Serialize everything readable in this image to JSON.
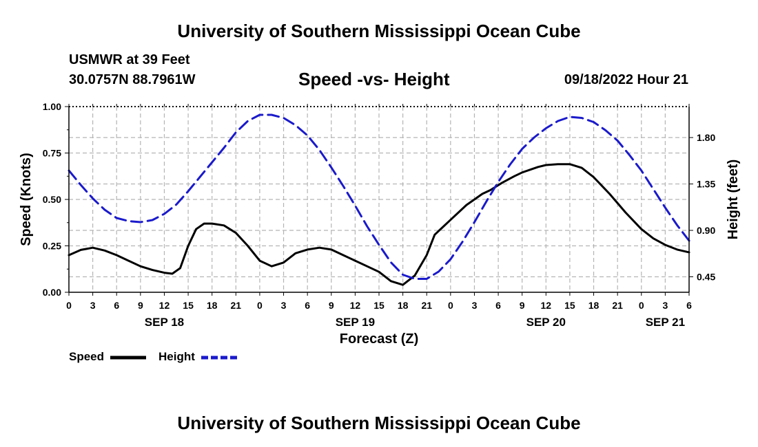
{
  "header": {
    "title": "University of Southern Mississippi Ocean Cube",
    "station": "USMWR at 39 Feet",
    "coords": "30.0757N  88.7961W",
    "subtitle": "Speed -vs- Height",
    "datetime": "09/18/2022 Hour 21",
    "footer_title": "University of Southern Mississippi Ocean Cube"
  },
  "legend": {
    "speed_label": "Speed",
    "height_label": "Height"
  },
  "colors": {
    "speed": "#000000",
    "height": "#1a1acc",
    "grid": "#b4b4b4"
  },
  "chart_data": {
    "type": "line",
    "title": "Speed -vs- Height",
    "xlabel": "Forecast (Z)",
    "ylabel": "Speed (Knots)",
    "y2label": "Height (feet)",
    "x_unit": "hours since 09/18 00Z",
    "xlim": [
      0,
      78
    ],
    "ylim": [
      0,
      1.0
    ],
    "y2lim": [
      0.3,
      2.1
    ],
    "x_tick_labels": [
      "0",
      "3",
      "6",
      "9",
      "12",
      "15",
      "18",
      "21",
      "0",
      "3",
      "6",
      "9",
      "12",
      "15",
      "18",
      "21",
      "0",
      "3",
      "6",
      "9",
      "12",
      "15",
      "18",
      "21",
      "0",
      "3",
      "6"
    ],
    "day_labels": [
      {
        "label": "SEP 18",
        "x": 12
      },
      {
        "label": "SEP 19",
        "x": 36
      },
      {
        "label": "SEP 20",
        "x": 60
      },
      {
        "label": "SEP 21",
        "x": 75
      }
    ],
    "y_ticks": [
      "0.00",
      "0.25",
      "0.50",
      "0.75",
      "1.00"
    ],
    "y2_ticks": [
      "0.45",
      "0.90",
      "1.35",
      "1.80"
    ],
    "series": [
      {
        "name": "Speed",
        "axis": "left",
        "style": "solid",
        "x": [
          0,
          1.5,
          3,
          4.5,
          6,
          7.5,
          9,
          10.5,
          12,
          13,
          14,
          15,
          16,
          17,
          18,
          19.5,
          21,
          22.5,
          24,
          25.5,
          27,
          28.5,
          30,
          31.5,
          33,
          34.5,
          36,
          37.5,
          39,
          40.5,
          42,
          43.5,
          45,
          46,
          47,
          48,
          49,
          50,
          51,
          52,
          53,
          54.5,
          56,
          57,
          58,
          59,
          60,
          61.5,
          63,
          64.5,
          66,
          67,
          68,
          69,
          70,
          72,
          73.5,
          75,
          76.5,
          78
        ],
        "values": [
          0.2,
          0.228,
          0.24,
          0.225,
          0.2,
          0.17,
          0.14,
          0.12,
          0.105,
          0.1,
          0.13,
          0.25,
          0.34,
          0.37,
          0.37,
          0.36,
          0.32,
          0.25,
          0.17,
          0.14,
          0.16,
          0.21,
          0.23,
          0.24,
          0.23,
          0.2,
          0.17,
          0.14,
          0.11,
          0.06,
          0.04,
          0.09,
          0.2,
          0.31,
          0.35,
          0.39,
          0.43,
          0.47,
          0.5,
          0.53,
          0.55,
          0.59,
          0.625,
          0.645,
          0.66,
          0.675,
          0.685,
          0.69,
          0.69,
          0.67,
          0.62,
          0.575,
          0.53,
          0.48,
          0.43,
          0.34,
          0.29,
          0.255,
          0.23,
          0.215
        ]
      },
      {
        "name": "Height",
        "axis": "right",
        "style": "dashed",
        "x": [
          0,
          1.5,
          3,
          4.5,
          6,
          7.5,
          9,
          10.5,
          12,
          13.5,
          15,
          16.5,
          18,
          19.5,
          21,
          22.5,
          24,
          25.5,
          27,
          28.5,
          30,
          31.5,
          33,
          34.5,
          36,
          37.5,
          39,
          40.5,
          42,
          43.5,
          45,
          46.5,
          48,
          49.5,
          51,
          52.5,
          54,
          55.5,
          57,
          58.5,
          60,
          61.5,
          63,
          64.5,
          66,
          67.5,
          69,
          70.5,
          72,
          73.5,
          75,
          76.5,
          78
        ],
        "values": [
          1.48,
          1.34,
          1.21,
          1.1,
          1.02,
          0.99,
          0.98,
          1.0,
          1.06,
          1.15,
          1.28,
          1.42,
          1.56,
          1.7,
          1.85,
          1.96,
          2.02,
          2.02,
          1.99,
          1.92,
          1.82,
          1.68,
          1.51,
          1.33,
          1.14,
          0.94,
          0.76,
          0.59,
          0.47,
          0.43,
          0.43,
          0.5,
          0.62,
          0.79,
          0.98,
          1.18,
          1.37,
          1.54,
          1.69,
          1.8,
          1.89,
          1.96,
          2.0,
          1.99,
          1.95,
          1.87,
          1.77,
          1.63,
          1.48,
          1.3,
          1.12,
          0.95,
          0.8
        ]
      }
    ]
  }
}
